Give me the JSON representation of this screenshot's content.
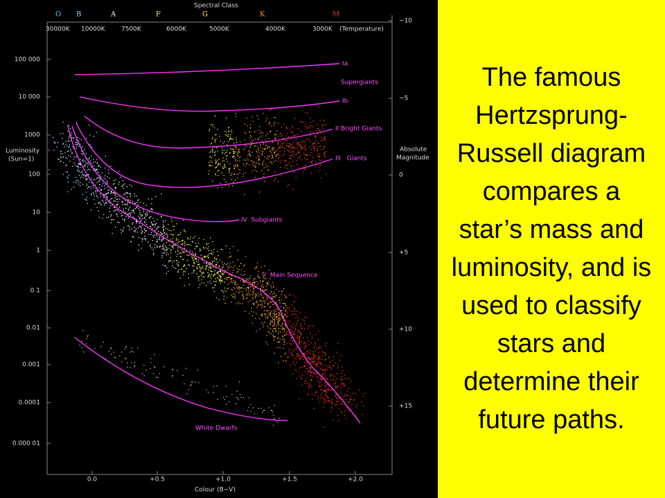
{
  "diagram": {
    "spectral_class_title": "Spectral Class",
    "spectral_classes": [
      "O",
      "B",
      "A",
      "F",
      "G",
      "K",
      "M"
    ],
    "temperatures": [
      "30000K",
      "10000K",
      "7500K",
      "6000K",
      "5000K",
      "4000K",
      "3000K"
    ],
    "temperature_label": "(Temperature)",
    "luminosity_ticks": [
      "100 000",
      "10 000",
      "1000",
      "100",
      "10",
      "1",
      "0.1",
      "0.01",
      "0.001",
      "0.0001",
      "0.000 01"
    ],
    "luminosity_label": [
      "Luminosity",
      "(Sun=1)"
    ],
    "magnitude_ticks": [
      "−10",
      "−5",
      "0",
      "+5",
      "+10",
      "+15"
    ],
    "magnitude_label": [
      "Absolute",
      "Magnitude"
    ],
    "colour_ticks": [
      "0.0",
      "+0.5",
      "+1.0",
      "+1.5",
      "+2.0"
    ],
    "colour_label": "Colour (B−V)",
    "curve_labels": [
      "Ia",
      "Supergiants",
      "Ib",
      "II Bright Giants",
      "III   Giants",
      "IV  Subgiants",
      "V  Main Sequence",
      "White Dwarfs"
    ]
  },
  "text": "The famous Hertzsprung-Russell diagram compares a star’s mass and luminosity, and is used to classify stars and determine their future paths."
}
